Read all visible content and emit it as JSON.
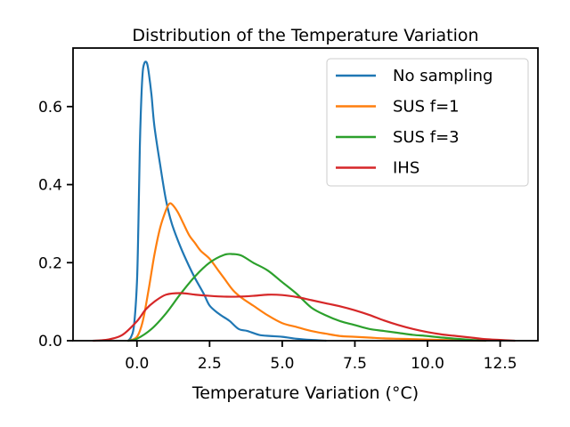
{
  "chart_data": {
    "type": "line",
    "title": "Distribution of the Temperature Variation",
    "xlabel": "Temperature Variation (°C)",
    "ylabel": "",
    "xlim": [
      -2.2,
      13.8
    ],
    "ylim": [
      0,
      0.75
    ],
    "xticks": [
      0.0,
      2.5,
      5.0,
      7.5,
      10.0,
      12.5
    ],
    "xtick_labels": [
      "0.0",
      "2.5",
      "5.0",
      "7.5",
      "10.0",
      "12.5"
    ],
    "yticks": [
      0.0,
      0.2,
      0.4,
      0.6
    ],
    "ytick_labels": [
      "0.0",
      "0.2",
      "0.4",
      "0.6"
    ],
    "grid": false,
    "legend_position": "top-right",
    "series": [
      {
        "name": "No sampling",
        "color": "#1f77b4",
        "x": [
          -0.3,
          -0.2,
          -0.1,
          0.0,
          0.05,
          0.1,
          0.15,
          0.2,
          0.25,
          0.3,
          0.35,
          0.4,
          0.5,
          0.6,
          0.8,
          1.0,
          1.2,
          1.5,
          1.8,
          2.0,
          2.3,
          2.5,
          2.8,
          3.0,
          3.2,
          3.5,
          3.8,
          4.2,
          4.6,
          5.0,
          5.5,
          6.0,
          6.5
        ],
        "y": [
          0.0,
          0.01,
          0.04,
          0.15,
          0.3,
          0.5,
          0.62,
          0.69,
          0.71,
          0.715,
          0.71,
          0.69,
          0.63,
          0.55,
          0.45,
          0.36,
          0.3,
          0.24,
          0.19,
          0.16,
          0.12,
          0.09,
          0.07,
          0.06,
          0.05,
          0.03,
          0.025,
          0.015,
          0.012,
          0.01,
          0.005,
          0.002,
          0.0
        ]
      },
      {
        "name": "SUS f=1",
        "color": "#ff7f0e",
        "x": [
          -0.3,
          0.0,
          0.2,
          0.4,
          0.6,
          0.8,
          1.0,
          1.1,
          1.2,
          1.4,
          1.6,
          1.8,
          2.0,
          2.2,
          2.5,
          2.8,
          3.0,
          3.3,
          3.6,
          4.0,
          4.5,
          5.0,
          5.5,
          6.0,
          6.5,
          7.0,
          7.5,
          8.0,
          8.5,
          9.0,
          9.5,
          10.0,
          11.0,
          12.0
        ],
        "y": [
          0.0,
          0.01,
          0.05,
          0.13,
          0.22,
          0.29,
          0.335,
          0.35,
          0.35,
          0.33,
          0.3,
          0.27,
          0.25,
          0.23,
          0.21,
          0.18,
          0.16,
          0.13,
          0.11,
          0.09,
          0.065,
          0.045,
          0.035,
          0.025,
          0.018,
          0.012,
          0.01,
          0.008,
          0.006,
          0.005,
          0.004,
          0.003,
          0.001,
          0.0
        ]
      },
      {
        "name": "SUS f=3",
        "color": "#2ca02c",
        "x": [
          -0.3,
          0.0,
          0.5,
          1.0,
          1.5,
          2.0,
          2.5,
          3.0,
          3.3,
          3.6,
          4.0,
          4.5,
          5.0,
          5.5,
          6.0,
          6.5,
          7.0,
          7.5,
          8.0,
          8.5,
          9.0,
          9.5,
          10.0,
          10.5,
          11.0,
          11.5,
          12.0
        ],
        "y": [
          0.0,
          0.005,
          0.03,
          0.07,
          0.12,
          0.165,
          0.2,
          0.22,
          0.222,
          0.218,
          0.2,
          0.18,
          0.15,
          0.12,
          0.085,
          0.065,
          0.05,
          0.04,
          0.03,
          0.025,
          0.02,
          0.015,
          0.012,
          0.008,
          0.005,
          0.002,
          0.0
        ]
      },
      {
        "name": "IHS",
        "color": "#d62728",
        "x": [
          -1.5,
          -1.0,
          -0.5,
          0.0,
          0.3,
          0.6,
          1.0,
          1.5,
          2.0,
          2.5,
          3.0,
          3.5,
          4.0,
          4.5,
          5.0,
          5.5,
          6.0,
          6.5,
          7.0,
          7.5,
          8.0,
          8.5,
          9.0,
          9.5,
          10.0,
          10.5,
          11.0,
          11.5,
          12.0,
          12.5,
          13.0
        ],
        "y": [
          0.0,
          0.003,
          0.015,
          0.05,
          0.08,
          0.1,
          0.118,
          0.122,
          0.118,
          0.115,
          0.113,
          0.113,
          0.115,
          0.118,
          0.117,
          0.112,
          0.104,
          0.096,
          0.088,
          0.078,
          0.066,
          0.052,
          0.04,
          0.03,
          0.022,
          0.016,
          0.012,
          0.008,
          0.004,
          0.002,
          0.0
        ]
      }
    ]
  }
}
